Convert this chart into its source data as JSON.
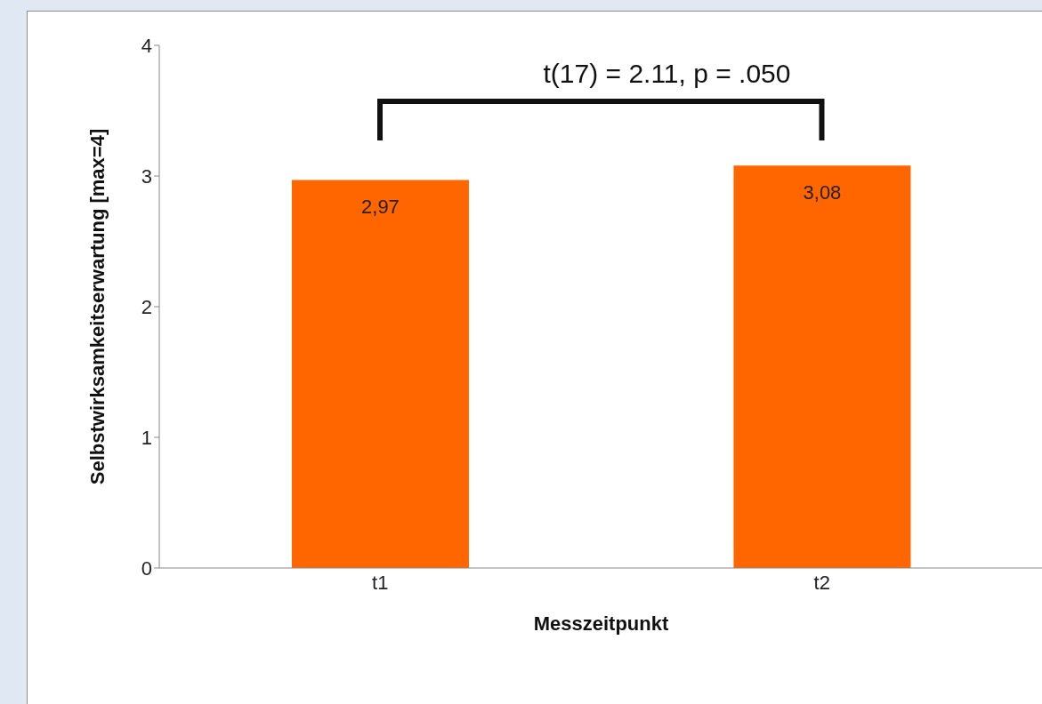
{
  "chart_data": {
    "type": "bar",
    "categories": [
      "t1",
      "t2"
    ],
    "values": [
      2.97,
      3.08
    ],
    "value_labels": [
      "2,97",
      "3,08"
    ],
    "color": "#ff6600",
    "ylim": [
      0,
      4
    ],
    "yticks": [
      0,
      1,
      2,
      3,
      4
    ],
    "xlabel": "Messzeitpunkt",
    "ylabel": "Selbstwirksamkeitserwartung [max=4]",
    "annotations": [
      "t(17) = 2.11, p = .050"
    ],
    "grid": false,
    "legend": false
  }
}
